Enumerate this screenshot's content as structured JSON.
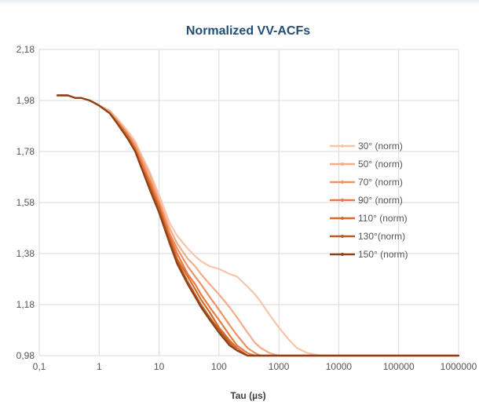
{
  "chart_data": {
    "type": "line",
    "title": "Normalized VV-ACFs",
    "xlabel": "Tau (µs)",
    "ylabel": "",
    "x_scale": "log",
    "xlim": [
      0.1,
      1000000
    ],
    "ylim": [
      0.98,
      2.18
    ],
    "x_tick_labels": [
      "0,1",
      "1",
      "10",
      "100",
      "1000",
      "10000",
      "100000",
      "1000000"
    ],
    "y_tick_labels": [
      "0,98",
      "1,18",
      "1,38",
      "1,58",
      "1,78",
      "1,98",
      "2,18"
    ],
    "grid": true,
    "legend_position": "right",
    "x": [
      0.2,
      0.3,
      0.4,
      0.5,
      0.7,
      1,
      1.5,
      2,
      3,
      4,
      5,
      7,
      10,
      15,
      20,
      30,
      40,
      50,
      70,
      100,
      150,
      200,
      300,
      400,
      500,
      700,
      1000,
      1500,
      2000,
      3000,
      5000,
      10000,
      100000,
      1000000
    ],
    "series": [
      {
        "name": "30° (norm)",
        "color": "#f7c6aa",
        "values": [
          2.0,
          2.0,
          1.99,
          1.99,
          1.98,
          1.96,
          1.94,
          1.91,
          1.86,
          1.82,
          1.77,
          1.7,
          1.61,
          1.5,
          1.45,
          1.4,
          1.37,
          1.35,
          1.33,
          1.32,
          1.3,
          1.29,
          1.25,
          1.22,
          1.19,
          1.14,
          1.09,
          1.04,
          1.01,
          0.99,
          0.98,
          0.98,
          0.98,
          0.98
        ]
      },
      {
        "name": "50° (norm)",
        "color": "#f3ab88",
        "values": [
          2.0,
          2.0,
          1.99,
          1.99,
          1.98,
          1.96,
          1.94,
          1.9,
          1.85,
          1.81,
          1.76,
          1.69,
          1.59,
          1.48,
          1.42,
          1.36,
          1.33,
          1.3,
          1.26,
          1.22,
          1.17,
          1.13,
          1.07,
          1.03,
          1.01,
          0.99,
          0.98,
          0.98,
          0.98,
          0.98,
          0.98,
          0.98,
          0.98,
          0.98
        ]
      },
      {
        "name": "70° (norm)",
        "color": "#ee9163",
        "values": [
          2.0,
          2.0,
          1.99,
          1.99,
          1.98,
          1.96,
          1.93,
          1.9,
          1.85,
          1.8,
          1.75,
          1.67,
          1.58,
          1.46,
          1.4,
          1.33,
          1.29,
          1.26,
          1.21,
          1.16,
          1.1,
          1.06,
          1.01,
          0.99,
          0.98,
          0.98,
          0.98,
          0.98,
          0.98,
          0.98,
          0.98,
          0.98,
          0.98,
          0.98
        ]
      },
      {
        "name": "90° (norm)",
        "color": "#e87a3f",
        "values": [
          2.0,
          2.0,
          1.99,
          1.99,
          1.98,
          1.96,
          1.93,
          1.9,
          1.84,
          1.79,
          1.74,
          1.66,
          1.57,
          1.45,
          1.38,
          1.3,
          1.26,
          1.22,
          1.17,
          1.12,
          1.06,
          1.02,
          0.99,
          0.98,
          0.98,
          0.98,
          0.98,
          0.98,
          0.98,
          0.98,
          0.98,
          0.98,
          0.98,
          0.98
        ]
      },
      {
        "name": "110° (norm)",
        "color": "#d9692b",
        "values": [
          2.0,
          2.0,
          1.99,
          1.99,
          1.98,
          1.96,
          1.93,
          1.89,
          1.84,
          1.79,
          1.73,
          1.65,
          1.56,
          1.44,
          1.36,
          1.29,
          1.24,
          1.2,
          1.15,
          1.09,
          1.04,
          1.01,
          0.98,
          0.98,
          0.98,
          0.98,
          0.98,
          0.98,
          0.98,
          0.98,
          0.98,
          0.98,
          0.98,
          0.98
        ]
      },
      {
        "name": "130°(norm)",
        "color": "#b85a23",
        "values": [
          2.0,
          2.0,
          1.99,
          1.99,
          1.98,
          1.96,
          1.93,
          1.89,
          1.83,
          1.78,
          1.72,
          1.64,
          1.55,
          1.43,
          1.35,
          1.27,
          1.22,
          1.18,
          1.13,
          1.08,
          1.03,
          1.0,
          0.98,
          0.98,
          0.98,
          0.98,
          0.98,
          0.98,
          0.98,
          0.98,
          0.98,
          0.98,
          0.98,
          0.98
        ]
      },
      {
        "name": "150° (norm)",
        "color": "#8c4218",
        "values": [
          2.0,
          2.0,
          1.99,
          1.99,
          1.98,
          1.96,
          1.93,
          1.89,
          1.83,
          1.78,
          1.72,
          1.63,
          1.54,
          1.42,
          1.34,
          1.26,
          1.21,
          1.17,
          1.12,
          1.07,
          1.02,
          1.0,
          0.98,
          0.98,
          0.98,
          0.98,
          0.98,
          0.98,
          0.98,
          0.98,
          0.98,
          0.98,
          0.98,
          0.98
        ]
      }
    ]
  }
}
